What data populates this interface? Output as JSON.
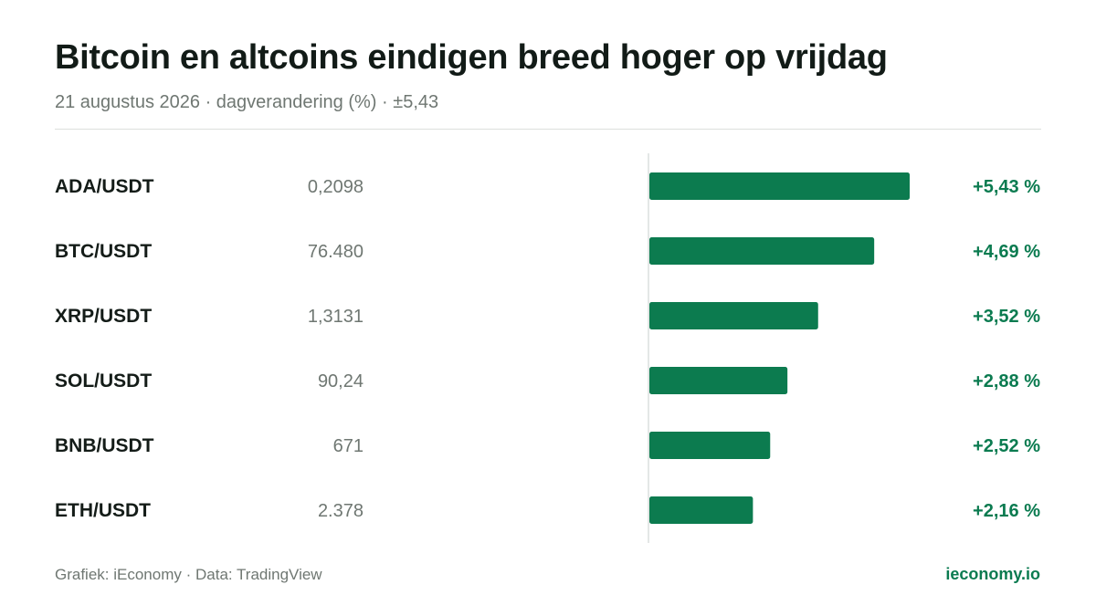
{
  "header": {
    "title": "Bitcoin en altcoins eindigen breed hoger op vrijdag",
    "subtitle": "21 augustus 2026 · dagverandering (%) · ±5,43"
  },
  "footer": {
    "credit": "Grafiek: iEconomy · Data: TradingView",
    "brand": "ieconomy.io"
  },
  "colors": {
    "bar": "#0c7b4f",
    "positive_text": "#0b7b50",
    "axis": "#dcdfdd"
  },
  "chart_data": {
    "type": "bar",
    "orientation": "horizontal",
    "categories": [
      "ADA/USDT",
      "BTC/USDT",
      "XRP/USDT",
      "SOL/USDT",
      "BNB/USDT",
      "ETH/USDT"
    ],
    "prices": [
      "0,2098",
      "76.480",
      "1,3131",
      "90,24",
      "671",
      "2.378"
    ],
    "values": [
      5.43,
      4.69,
      3.52,
      2.88,
      2.52,
      2.16
    ],
    "value_labels": [
      "+5,43 %",
      "+4,69 %",
      "+3,52 %",
      "+2,88 %",
      "+2,52 %",
      "+2,16 %"
    ],
    "xlim": [
      0,
      5.43
    ],
    "unit": "%"
  }
}
